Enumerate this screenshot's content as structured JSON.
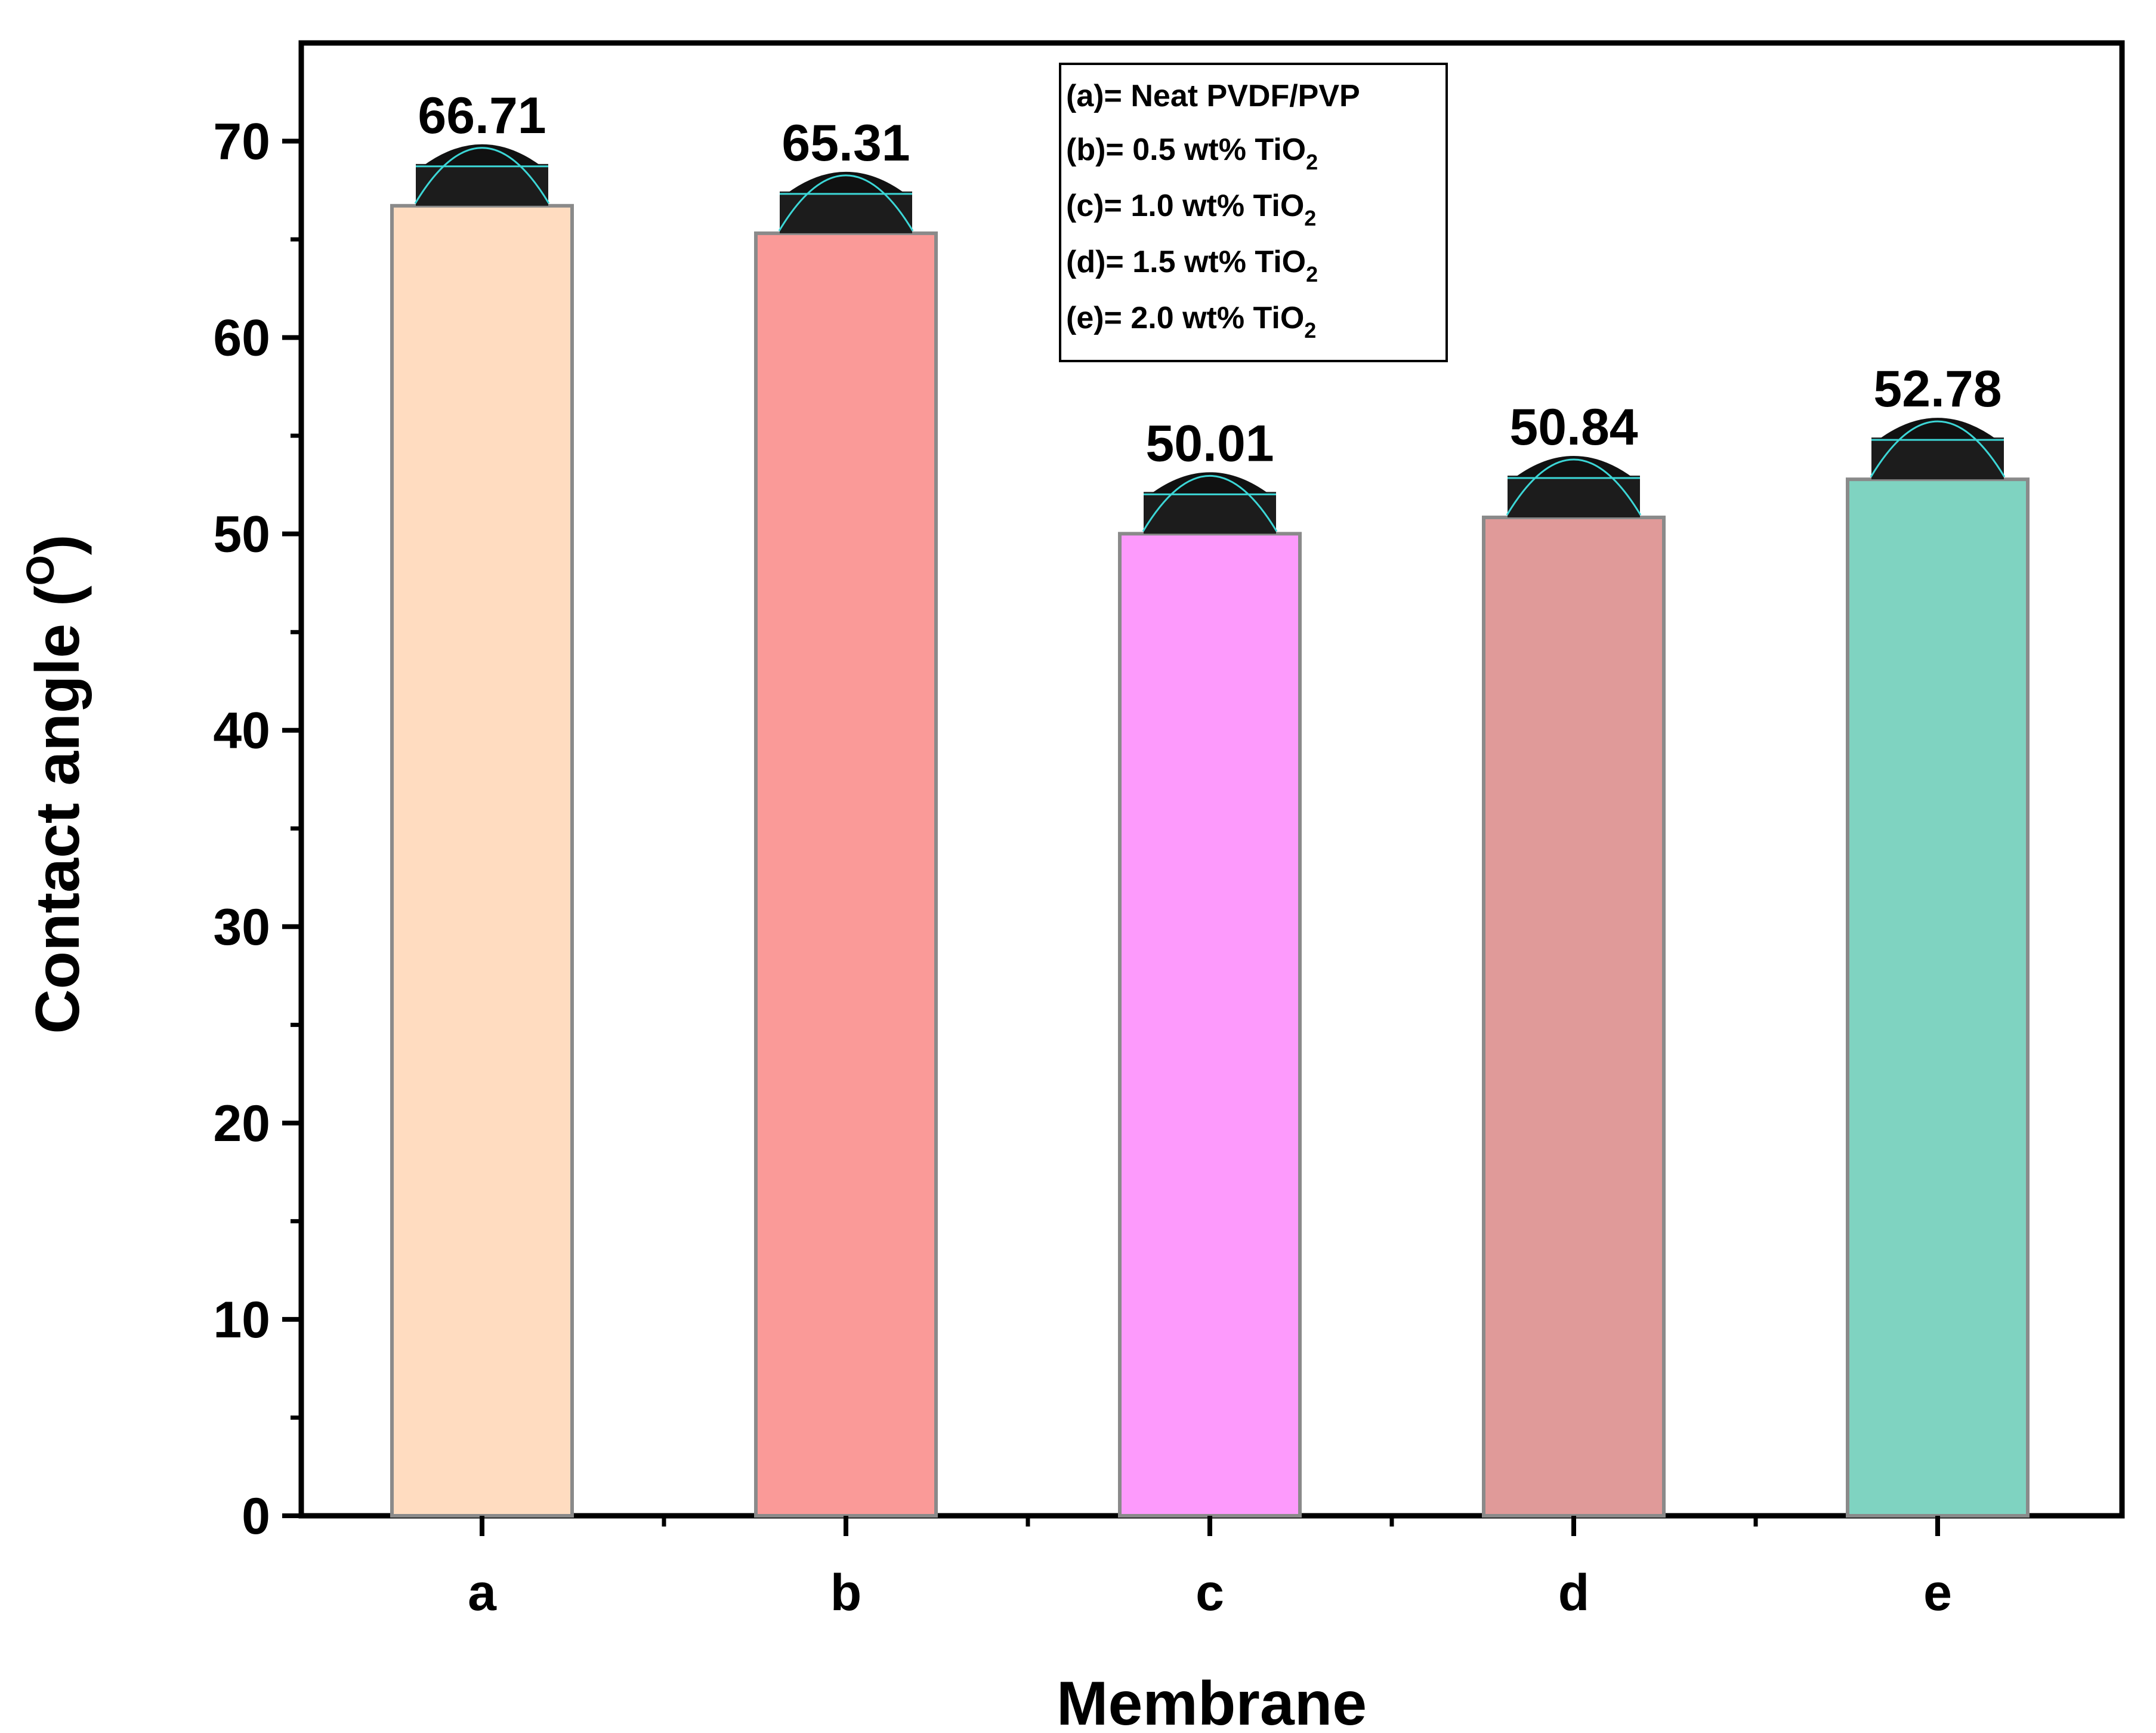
{
  "chart_data": {
    "type": "bar",
    "categories": [
      "a",
      "b",
      "c",
      "d",
      "e"
    ],
    "values": [
      66.71,
      65.31,
      50.01,
      50.84,
      52.78
    ],
    "value_labels": [
      "66.71",
      "65.31",
      "50.01",
      "50.84",
      "52.78"
    ],
    "colors": [
      "#ffdcc0",
      "#fa9a98",
      "#fd9afc",
      "#e09a99",
      "#7fd3c1"
    ],
    "ylabel": "Contact angle (",
    "ylabel_super": "O",
    "ylabel_close": ")",
    "xlabel": "Membrane",
    "ylim": [
      0,
      75
    ],
    "yticks": [
      "0",
      "10",
      "20",
      "30",
      "40",
      "50",
      "60",
      "70"
    ],
    "ytick_values": [
      0,
      10,
      20,
      30,
      40,
      50,
      60,
      70
    ],
    "legend": [
      {
        "text": "(a)= Neat PVDF/PVP",
        "sub": ""
      },
      {
        "text": "(b)= 0.5 wt% TiO",
        "sub": "2"
      },
      {
        "text": "(c)= 1.0 wt% TiO",
        "sub": "2"
      },
      {
        "text": "(d)= 1.5 wt% TiO",
        "sub": "2"
      },
      {
        "text": "(e)= 2.0 wt% TiO",
        "sub": "2"
      }
    ],
    "legend_position": "top-center",
    "grid": false
  }
}
